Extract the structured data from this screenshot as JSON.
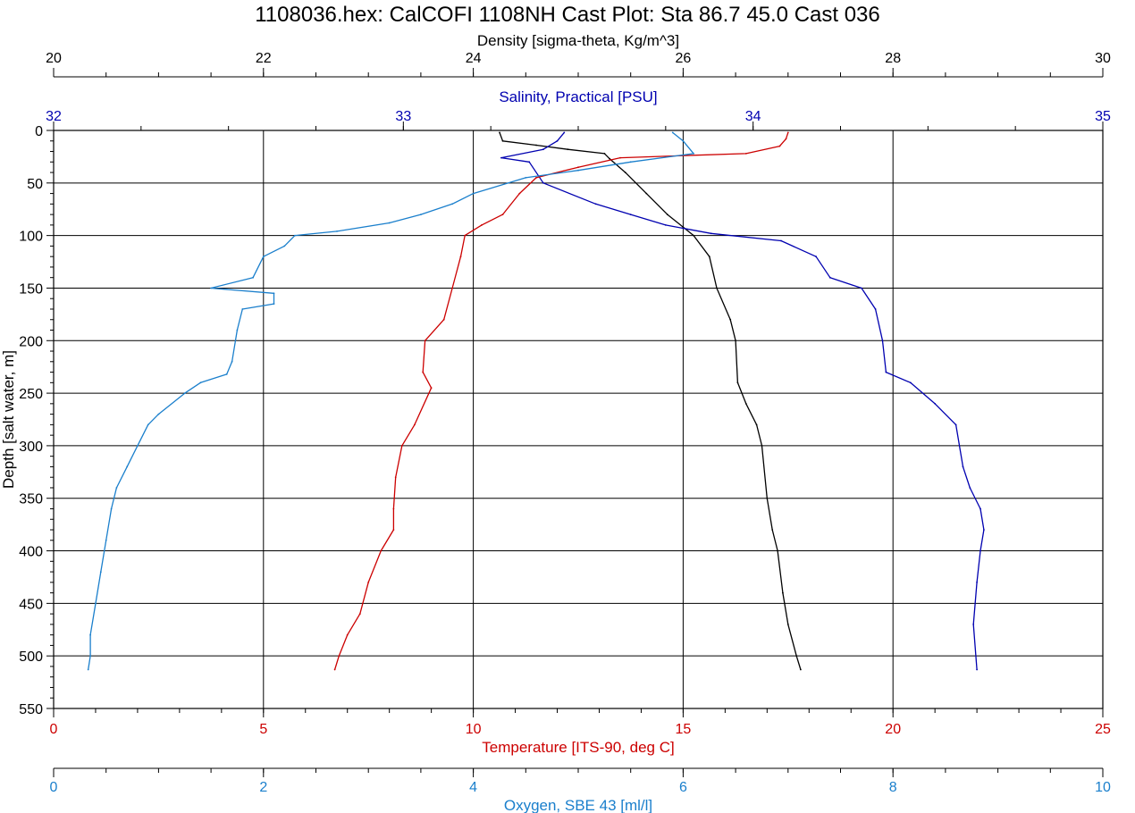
{
  "chart_data": {
    "type": "line",
    "title": "1108036.hex:  CalCOFI 1108NH Cast Plot: Sta 86.7 45.0  Cast 036",
    "grid": true,
    "y_axis": {
      "label": "Depth [salt water, m]",
      "range": [
        0,
        550
      ],
      "ticks": [
        "0",
        "50",
        "100",
        "150",
        "200",
        "250",
        "300",
        "350",
        "400",
        "450",
        "500",
        "550"
      ],
      "inverted": true
    },
    "x_axes": [
      {
        "key": "density",
        "label": "Density [sigma-theta, Kg/m^3]",
        "position": "top",
        "color": "#000000",
        "range": [
          20,
          30
        ],
        "minor_step": 0.5,
        "ticks": [
          "20",
          "22",
          "24",
          "26",
          "28",
          "30"
        ]
      },
      {
        "key": "salinity",
        "label": "Salinity, Practical [PSU]",
        "position": "top",
        "color": "#0000b0",
        "range": [
          32,
          35
        ],
        "minor_step": 0.25,
        "ticks": [
          "32",
          "33",
          "34",
          "35"
        ]
      },
      {
        "key": "temperature",
        "label": "Temperature [ITS-90, deg C]",
        "position": "bottom",
        "color": "#cc0000",
        "range": [
          0,
          25
        ],
        "minor_step": 1,
        "ticks": [
          "0",
          "5",
          "10",
          "15",
          "20",
          "25"
        ]
      },
      {
        "key": "oxygen",
        "label": "Oxygen, SBE 43 [ml/l]",
        "position": "bottom",
        "color": "#1a7fcc",
        "range": [
          0,
          10
        ],
        "minor_step": 0.5,
        "ticks": [
          "0",
          "2",
          "4",
          "6",
          "8",
          "10"
        ]
      }
    ],
    "series": [
      {
        "axis": "density",
        "color": "#000000",
        "points": [
          [
            24.25,
            2
          ],
          [
            24.28,
            10
          ],
          [
            24.6,
            14
          ],
          [
            24.9,
            18
          ],
          [
            25.25,
            22
          ],
          [
            25.3,
            27
          ],
          [
            25.45,
            40
          ],
          [
            25.65,
            60
          ],
          [
            25.85,
            80
          ],
          [
            26.0,
            92
          ],
          [
            26.1,
            100
          ],
          [
            26.25,
            120
          ],
          [
            26.32,
            150
          ],
          [
            26.45,
            180
          ],
          [
            26.5,
            200
          ],
          [
            26.52,
            240
          ],
          [
            26.6,
            260
          ],
          [
            26.7,
            280
          ],
          [
            26.75,
            300
          ],
          [
            26.8,
            350
          ],
          [
            26.85,
            380
          ],
          [
            26.9,
            400
          ],
          [
            26.95,
            440
          ],
          [
            27.0,
            470
          ],
          [
            27.08,
            500
          ],
          [
            27.12,
            513
          ]
        ]
      },
      {
        "axis": "salinity",
        "color": "#0000b0",
        "points": [
          [
            33.46,
            2
          ],
          [
            33.44,
            10
          ],
          [
            33.4,
            18
          ],
          [
            33.28,
            26
          ],
          [
            33.36,
            30
          ],
          [
            33.4,
            50
          ],
          [
            33.55,
            70
          ],
          [
            33.65,
            80
          ],
          [
            33.75,
            90
          ],
          [
            33.88,
            98
          ],
          [
            34.08,
            105
          ],
          [
            34.18,
            120
          ],
          [
            34.22,
            140
          ],
          [
            34.31,
            150
          ],
          [
            34.35,
            170
          ],
          [
            34.37,
            200
          ],
          [
            34.38,
            230
          ],
          [
            34.45,
            240
          ],
          [
            34.52,
            260
          ],
          [
            34.58,
            280
          ],
          [
            34.6,
            320
          ],
          [
            34.62,
            340
          ],
          [
            34.65,
            360
          ],
          [
            34.66,
            380
          ],
          [
            34.65,
            400
          ],
          [
            34.64,
            430
          ],
          [
            34.63,
            470
          ],
          [
            34.64,
            513
          ]
        ]
      },
      {
        "axis": "temperature",
        "color": "#cc0000",
        "points": [
          [
            17.5,
            2
          ],
          [
            17.45,
            8
          ],
          [
            17.3,
            15
          ],
          [
            16.5,
            22
          ],
          [
            15.0,
            24
          ],
          [
            13.5,
            26
          ],
          [
            12.5,
            35
          ],
          [
            11.5,
            45
          ],
          [
            11.1,
            60
          ],
          [
            10.7,
            80
          ],
          [
            10.2,
            90
          ],
          [
            9.8,
            100
          ],
          [
            9.7,
            120
          ],
          [
            9.5,
            150
          ],
          [
            9.3,
            180
          ],
          [
            8.85,
            200
          ],
          [
            8.8,
            230
          ],
          [
            9.0,
            245
          ],
          [
            8.6,
            280
          ],
          [
            8.3,
            300
          ],
          [
            8.15,
            330
          ],
          [
            8.1,
            360
          ],
          [
            8.1,
            380
          ],
          [
            7.8,
            400
          ],
          [
            7.5,
            430
          ],
          [
            7.3,
            460
          ],
          [
            7.0,
            480
          ],
          [
            6.8,
            500
          ],
          [
            6.7,
            513
          ]
        ]
      },
      {
        "axis": "oxygen",
        "color": "#1a7fcc",
        "points": [
          [
            5.9,
            2
          ],
          [
            6.0,
            10
          ],
          [
            6.1,
            22
          ],
          [
            5.5,
            30
          ],
          [
            5.0,
            38
          ],
          [
            4.5,
            45
          ],
          [
            4.0,
            60
          ],
          [
            3.8,
            70
          ],
          [
            3.5,
            80
          ],
          [
            3.2,
            88
          ],
          [
            2.7,
            96
          ],
          [
            2.3,
            100
          ],
          [
            2.2,
            110
          ],
          [
            2.0,
            120
          ],
          [
            1.9,
            140
          ],
          [
            1.5,
            150
          ],
          [
            2.1,
            155
          ],
          [
            2.1,
            165
          ],
          [
            1.8,
            170
          ],
          [
            1.75,
            190
          ],
          [
            1.7,
            220
          ],
          [
            1.65,
            232
          ],
          [
            1.4,
            240
          ],
          [
            1.25,
            250
          ],
          [
            1.0,
            270
          ],
          [
            0.9,
            280
          ],
          [
            0.8,
            300
          ],
          [
            0.7,
            320
          ],
          [
            0.6,
            340
          ],
          [
            0.55,
            360
          ],
          [
            0.5,
            390
          ],
          [
            0.45,
            420
          ],
          [
            0.4,
            450
          ],
          [
            0.35,
            480
          ],
          [
            0.35,
            500
          ],
          [
            0.33,
            513
          ]
        ]
      }
    ]
  }
}
